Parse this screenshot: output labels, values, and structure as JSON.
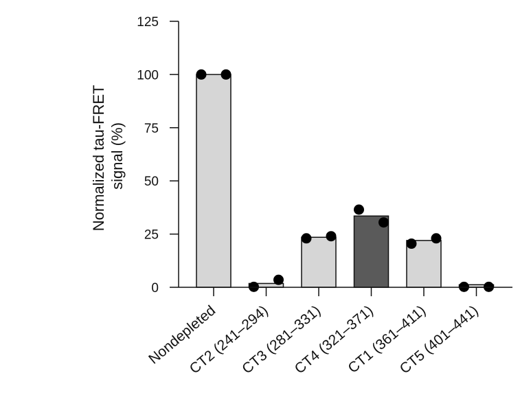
{
  "chart_data": {
    "type": "bar",
    "title": "",
    "xlabel": "",
    "ylabel_lines": [
      "Normalized tau-FRET",
      "signal (%)"
    ],
    "ylim": [
      0,
      125
    ],
    "yticks": [
      "0",
      "25",
      "50",
      "75",
      "100",
      "125"
    ],
    "grid": false,
    "categories": [
      "Nondepleted",
      "CT2 (241–294)",
      "CT3 (281–331)",
      "CT4 (321–371)",
      "CT1 (361–411)",
      "CT5 (401–441)"
    ],
    "values": [
      100,
      1.8,
      23.5,
      33.5,
      22,
      1.2
    ],
    "bar_colors": [
      "#d6d6d6",
      "#d6d6d6",
      "#d6d6d6",
      "#5a5a5a",
      "#d6d6d6",
      "#d6d6d6"
    ],
    "points": [
      [
        100,
        100
      ],
      [
        0.2,
        3.5
      ],
      [
        23,
        24
      ],
      [
        36.5,
        30.5
      ],
      [
        20.5,
        23
      ],
      [
        0.2,
        0.2
      ]
    ]
  }
}
